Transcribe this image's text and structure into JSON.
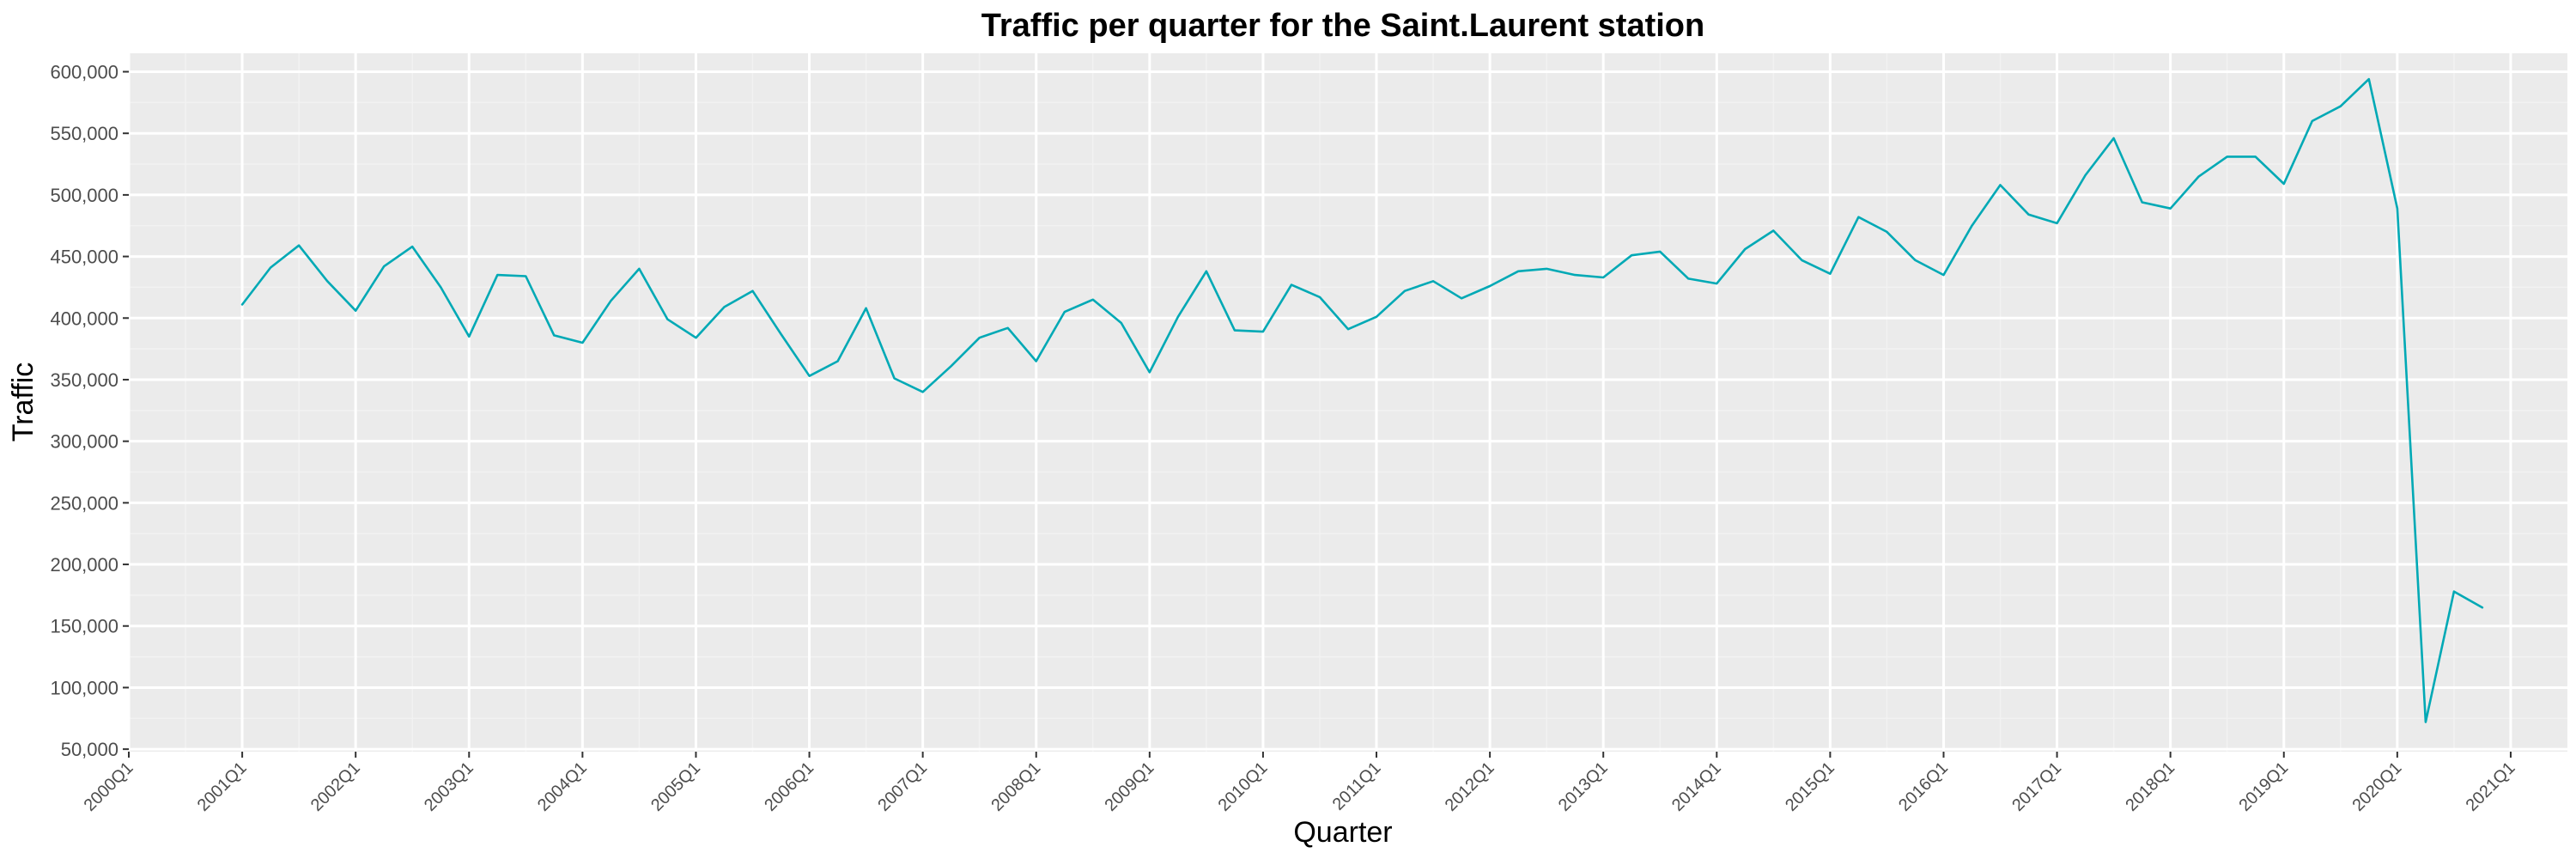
{
  "chart_data": {
    "type": "line",
    "title": "Traffic per quarter for the Saint.Laurent station",
    "xlabel": "Quarter",
    "ylabel": "Traffic",
    "ylim": [
      48000,
      615000
    ],
    "x_range_quarters": [
      "2000Q1",
      "2021Q3"
    ],
    "y_ticks": [
      {
        "value": 50000,
        "label": "50,000"
      },
      {
        "value": 100000,
        "label": "100,000"
      },
      {
        "value": 150000,
        "label": "150,000"
      },
      {
        "value": 200000,
        "label": "200,000"
      },
      {
        "value": 250000,
        "label": "250,000"
      },
      {
        "value": 300000,
        "label": "300,000"
      },
      {
        "value": 350000,
        "label": "350,000"
      },
      {
        "value": 400000,
        "label": "400,000"
      },
      {
        "value": 450000,
        "label": "450,000"
      },
      {
        "value": 500000,
        "label": "500,000"
      },
      {
        "value": 550000,
        "label": "550,000"
      },
      {
        "value": 600000,
        "label": "600,000"
      }
    ],
    "x_ticks": [
      "2000Q1",
      "2001Q1",
      "2002Q1",
      "2003Q1",
      "2004Q1",
      "2005Q1",
      "2006Q1",
      "2007Q1",
      "2008Q1",
      "2009Q1",
      "2010Q1",
      "2011Q1",
      "2012Q1",
      "2013Q1",
      "2014Q1",
      "2015Q1",
      "2016Q1",
      "2017Q1",
      "2018Q1",
      "2019Q1",
      "2020Q1",
      "2021Q1"
    ],
    "grid": true,
    "legend": "none",
    "colors": {
      "line": "#00A9B5",
      "panel_bg": "#EBEBEB",
      "grid_major": "#FFFFFF",
      "grid_minor": "#F2F2F2"
    },
    "series": [
      {
        "x": [
          "2001Q1",
          "2001Q2",
          "2001Q3",
          "2001Q4",
          "2002Q1",
          "2002Q2",
          "2002Q3",
          "2002Q4",
          "2003Q1",
          "2003Q2",
          "2003Q3",
          "2003Q4",
          "2004Q1",
          "2004Q2",
          "2004Q3",
          "2004Q4",
          "2005Q1",
          "2005Q2",
          "2005Q3",
          "2005Q4",
          "2006Q1",
          "2006Q2",
          "2006Q3",
          "2006Q4",
          "2007Q1",
          "2007Q2",
          "2007Q3",
          "2007Q4",
          "2008Q1",
          "2008Q2",
          "2008Q3",
          "2008Q4",
          "2009Q1",
          "2009Q2",
          "2009Q3",
          "2009Q4",
          "2010Q1",
          "2010Q2",
          "2010Q3",
          "2010Q4",
          "2011Q1",
          "2011Q2",
          "2011Q3",
          "2011Q4",
          "2012Q1",
          "2012Q2",
          "2012Q3",
          "2012Q4",
          "2013Q1",
          "2013Q2",
          "2013Q3",
          "2013Q4",
          "2014Q1",
          "2014Q2",
          "2014Q3",
          "2014Q4",
          "2015Q1",
          "2015Q2",
          "2015Q3",
          "2015Q4",
          "2016Q1",
          "2016Q2",
          "2016Q3",
          "2016Q4",
          "2017Q1",
          "2017Q2",
          "2017Q3",
          "2017Q4",
          "2018Q1",
          "2018Q2",
          "2018Q3",
          "2018Q4",
          "2019Q1",
          "2019Q2",
          "2019Q3",
          "2019Q4",
          "2020Q1",
          "2020Q2",
          "2020Q3",
          "2020Q4"
        ],
        "values": [
          411000,
          441000,
          459000,
          430000,
          406000,
          442000,
          458000,
          425000,
          385000,
          435000,
          434000,
          386000,
          380000,
          414000,
          440000,
          399000,
          384000,
          409000,
          422000,
          387000,
          353000,
          365000,
          408000,
          351000,
          340000,
          361000,
          384000,
          392000,
          365000,
          405000,
          415000,
          396000,
          356000,
          401000,
          438000,
          390000,
          389000,
          427000,
          417000,
          391000,
          401000,
          422000,
          430000,
          416000,
          426000,
          438000,
          440000,
          435000,
          433000,
          451000,
          454000,
          432000,
          428000,
          456000,
          471000,
          447000,
          436000,
          482000,
          470000,
          447000,
          435000,
          475000,
          508000,
          484000,
          477000,
          516000,
          546000,
          494000,
          489000,
          515000,
          531000,
          531000,
          509000,
          560000,
          572000,
          594000,
          489000,
          72000,
          178000,
          165000
        ]
      }
    ]
  }
}
